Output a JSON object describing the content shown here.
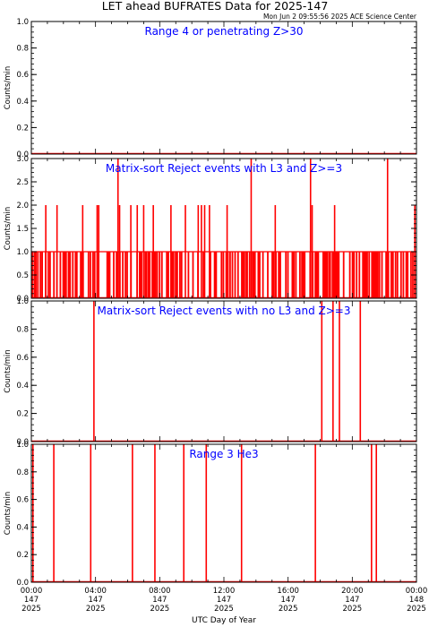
{
  "header": {
    "title": "LET ahead BUFRATES Data for 2025-147",
    "timestamp": "Mon Jun  2 09:55:56 2025 ACE Science Center"
  },
  "colors": {
    "data": "#ff0000",
    "panel_label": "#0000ff",
    "axis": "#000000"
  },
  "x_axis": {
    "label": "UTC Day of Year",
    "range_hours": [
      0,
      24
    ],
    "ticks": [
      {
        "hour": 0,
        "time": "00:00",
        "doy": "147",
        "year": "2025"
      },
      {
        "hour": 4,
        "time": "04:00",
        "doy": "147",
        "year": "2025"
      },
      {
        "hour": 8,
        "time": "08:00",
        "doy": "147",
        "year": "2025"
      },
      {
        "hour": 12,
        "time": "12:00",
        "doy": "147",
        "year": "2025"
      },
      {
        "hour": 16,
        "time": "16:00",
        "doy": "147",
        "year": "2025"
      },
      {
        "hour": 20,
        "time": "20:00",
        "doy": "147",
        "year": "2025"
      },
      {
        "hour": 24,
        "time": "00:00",
        "doy": "148",
        "year": "2025"
      }
    ]
  },
  "chart_data": [
    {
      "type": "line",
      "label": "Range 4 or   penetrating Z>30",
      "ylabel": "Counts/min",
      "ylim": [
        0,
        1
      ],
      "yticks": [
        "0.0",
        "0.2",
        "0.4",
        "0.6",
        "0.8",
        "1.0"
      ],
      "spikes": [],
      "dense": null
    },
    {
      "type": "line",
      "label": "Matrix-sort Reject events with L3 and Z>=3",
      "ylabel": "Counts/min",
      "ylim": [
        0,
        3
      ],
      "yticks": [
        "0.0",
        "0.5",
        "1.0",
        "1.5",
        "2.0",
        "2.5",
        "3.0"
      ],
      "spikes": [
        {
          "x": 0.9,
          "y": 2
        },
        {
          "x": 1.6,
          "y": 2
        },
        {
          "x": 3.2,
          "y": 2
        },
        {
          "x": 4.1,
          "y": 2
        },
        {
          "x": 4.2,
          "y": 2
        },
        {
          "x": 5.4,
          "y": 3
        },
        {
          "x": 5.5,
          "y": 2
        },
        {
          "x": 6.2,
          "y": 2
        },
        {
          "x": 6.6,
          "y": 2
        },
        {
          "x": 7.0,
          "y": 2
        },
        {
          "x": 7.6,
          "y": 2
        },
        {
          "x": 8.7,
          "y": 2
        },
        {
          "x": 9.6,
          "y": 2
        },
        {
          "x": 10.4,
          "y": 2
        },
        {
          "x": 10.6,
          "y": 2
        },
        {
          "x": 10.8,
          "y": 2
        },
        {
          "x": 11.1,
          "y": 2
        },
        {
          "x": 12.2,
          "y": 2
        },
        {
          "x": 13.7,
          "y": 3
        },
        {
          "x": 15.2,
          "y": 2
        },
        {
          "x": 17.4,
          "y": 3
        },
        {
          "x": 17.5,
          "y": 2
        },
        {
          "x": 18.9,
          "y": 2
        },
        {
          "x": 22.2,
          "y": 3
        },
        {
          "x": 23.9,
          "y": 2
        }
      ],
      "dense": {
        "level": 1
      }
    },
    {
      "type": "line",
      "label": "Matrix-sort Reject events with no L3 and Z>=3",
      "ylabel": "Counts/min",
      "ylim": [
        0,
        1
      ],
      "yticks": [
        "0.0",
        "0.2",
        "0.4",
        "0.6",
        "0.8",
        "1.0"
      ],
      "spikes": [
        {
          "x": 3.9,
          "y": 1
        },
        {
          "x": 18.1,
          "y": 1
        },
        {
          "x": 18.8,
          "y": 1
        },
        {
          "x": 19.2,
          "y": 1
        },
        {
          "x": 20.5,
          "y": 1
        }
      ],
      "dense": null
    },
    {
      "type": "line",
      "label": "Range 3 He3",
      "ylabel": "Counts/min",
      "ylim": [
        0,
        1
      ],
      "yticks": [
        "0.0",
        "0.2",
        "0.4",
        "0.6",
        "0.8",
        "1.0"
      ],
      "spikes": [
        {
          "x": 0.1,
          "y": 1
        },
        {
          "x": 1.4,
          "y": 1
        },
        {
          "x": 3.7,
          "y": 1
        },
        {
          "x": 6.3,
          "y": 1
        },
        {
          "x": 7.7,
          "y": 1
        },
        {
          "x": 9.5,
          "y": 1
        },
        {
          "x": 10.9,
          "y": 1
        },
        {
          "x": 13.1,
          "y": 1
        },
        {
          "x": 17.7,
          "y": 1
        },
        {
          "x": 21.2,
          "y": 1
        },
        {
          "x": 21.5,
          "y": 1
        }
      ],
      "dense": null
    }
  ]
}
